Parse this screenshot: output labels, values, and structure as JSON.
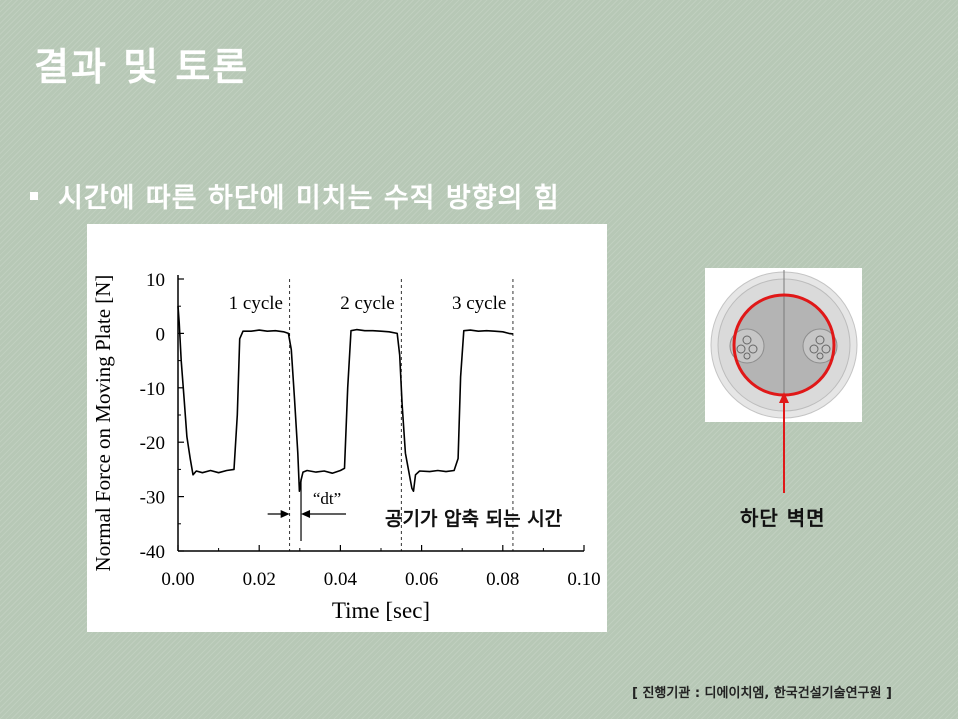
{
  "slide": {
    "title": "결과 및 토론",
    "subtitle": "시간에 따른 하단에 미치는 수직 방향의 힘",
    "footer": "[ 진행기관 : 디에이치엠, 한국건설기술연구원 ]",
    "wall_label": "하단 벽면"
  },
  "colors": {
    "line": "#000000",
    "highlight": "#e01818",
    "background": "#b7c8b6"
  },
  "chart_data": {
    "type": "line",
    "title": "",
    "xlabel": "Time [sec]",
    "ylabel": "Normal Force on Moving Plate [N]",
    "xlim": [
      0,
      0.1
    ],
    "ylim": [
      -40,
      10
    ],
    "xticks": [
      "0.00",
      "0.02",
      "0.04",
      "0.06",
      "0.08",
      "0.10"
    ],
    "yticks": [
      "10",
      "0",
      "-10",
      "-20",
      "-30",
      "-40"
    ],
    "grid": false,
    "cycle_labels": [
      "1 cycle",
      "2 cycle",
      "3 cycle"
    ],
    "cycle_boundaries": [
      0.0275,
      0.055,
      0.0825
    ],
    "dt_label": "“dt”",
    "dt_span": [
      0.0275,
      0.0303
    ],
    "annotation": "공기가 압축 되는 시간",
    "series": [
      {
        "x": [
          0.0,
          0.0003,
          0.0008,
          0.0015,
          0.0022,
          0.003,
          0.0037,
          0.0045,
          0.006,
          0.008,
          0.01,
          0.012,
          0.0138,
          0.0146,
          0.0152,
          0.016,
          0.018,
          0.02,
          0.022,
          0.024,
          0.026,
          0.0272,
          0.0279,
          0.0287,
          0.0295,
          0.0299,
          0.0303,
          0.0308,
          0.0318,
          0.034,
          0.036,
          0.038,
          0.04,
          0.041,
          0.0418,
          0.0426,
          0.044,
          0.046,
          0.048,
          0.05,
          0.052,
          0.054,
          0.0546,
          0.0552,
          0.056,
          0.057,
          0.0576,
          0.058,
          0.0585,
          0.0595,
          0.062,
          0.064,
          0.066,
          0.068,
          0.069,
          0.0696,
          0.0704,
          0.072,
          0.074,
          0.076,
          0.078,
          0.08,
          0.0815,
          0.0825
        ],
        "y": [
          5,
          2,
          -5,
          -12,
          -19,
          -23,
          -26,
          -25.3,
          -25.6,
          -25.2,
          -25.6,
          -25.2,
          -25,
          -15,
          -1,
          0.4,
          0.4,
          0.6,
          0.4,
          0.5,
          0.3,
          0,
          -3,
          -12,
          -22,
          -29,
          -27,
          -25.5,
          -25.2,
          -25.5,
          -25.3,
          -25.7,
          -25.2,
          -24.8,
          -10,
          0.5,
          0.7,
          0.5,
          0.5,
          0.4,
          0.3,
          0,
          -4,
          -13,
          -22,
          -26,
          -28.5,
          -29,
          -26,
          -25.3,
          -25.4,
          -25.2,
          -25.4,
          -25.2,
          -23,
          -8,
          0.5,
          0.6,
          0.4,
          0.5,
          0.4,
          0.3,
          0,
          -0.1
        ]
      }
    ]
  }
}
